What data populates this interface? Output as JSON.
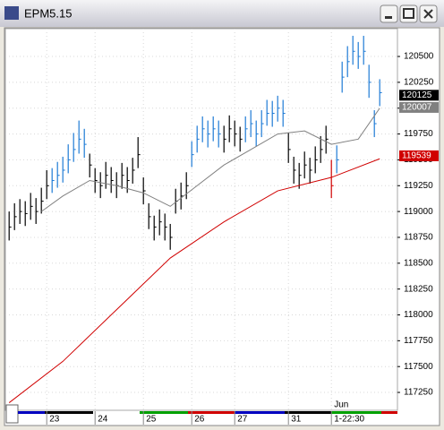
{
  "window": {
    "title": "EPM5.15"
  },
  "chart_data": {
    "type": "ohlc",
    "xlim": [
      -0.7,
      72.3
    ],
    "ylim": [
      117077,
      120769
    ],
    "yticks": [
      117250,
      117500,
      117750,
      118000,
      118250,
      118500,
      118750,
      119000,
      119250,
      119500,
      119750,
      120000,
      120250,
      120500
    ],
    "xticks": [
      {
        "value": 7,
        "label": "23"
      },
      {
        "value": 16,
        "label": "24"
      },
      {
        "value": 25,
        "label": "25"
      },
      {
        "value": 34,
        "label": "26"
      },
      {
        "value": 42,
        "label": "27"
      },
      {
        "value": 52,
        "label": "31"
      },
      {
        "value": 60,
        "label": "1-22:30"
      }
    ],
    "month_label": "Jun",
    "grid": true,
    "high": [
      119000,
      119080,
      119120,
      119100,
      119180,
      119130,
      119230,
      119400,
      119420,
      119480,
      119530,
      119650,
      119760,
      119880,
      119800,
      119560,
      119420,
      119380,
      119480,
      119430,
      119380,
      119470,
      119430,
      119520,
      119720,
      119330,
      119080,
      118960,
      119020,
      118980,
      118880,
      119220,
      119280,
      119380,
      119680,
      119830,
      119920,
      119880,
      119920,
      119880,
      119830,
      119930,
      119880,
      119820,
      119920,
      119980,
      119880,
      119980,
      120080,
      120070,
      120120,
      120080,
      119760,
      119530,
      119470,
      119580,
      119520,
      119630,
      119730,
      119830,
      119500,
      119640,
      120450,
      120600,
      120700,
      120640,
      120700,
      120420,
      119980,
      120280
    ],
    "low": [
      118720,
      118820,
      118880,
      118860,
      118920,
      118880,
      118980,
      119120,
      119180,
      119230,
      119280,
      119370,
      119480,
      119560,
      119520,
      119330,
      119180,
      119130,
      119220,
      119180,
      119130,
      119220,
      119180,
      119270,
      119420,
      119070,
      118830,
      118720,
      118770,
      118720,
      118630,
      118980,
      119020,
      119120,
      119430,
      119570,
      119670,
      119620,
      119680,
      119620,
      119570,
      119670,
      119630,
      119580,
      119670,
      119720,
      119630,
      119720,
      119830,
      119820,
      119870,
      119820,
      119470,
      119270,
      119220,
      119320,
      119270,
      119370,
      119470,
      119560,
      119130,
      119370,
      120150,
      120300,
      120420,
      120380,
      120420,
      120100,
      119720,
      120020
    ],
    "close": [
      118850,
      118950,
      119000,
      118980,
      119050,
      119000,
      119100,
      119250,
      119300,
      119350,
      119400,
      119500,
      119600,
      119700,
      119650,
      119450,
      119300,
      119250,
      119350,
      119300,
      119250,
      119350,
      119300,
      119400,
      119550,
      119200,
      118950,
      118850,
      118900,
      118850,
      118750,
      119100,
      119150,
      119250,
      119550,
      119700,
      119800,
      119750,
      119800,
      119750,
      119700,
      119800,
      119750,
      119700,
      119800,
      119850,
      119750,
      119850,
      119950,
      119950,
      120000,
      119950,
      119600,
      119400,
      119350,
      119450,
      119400,
      119500,
      119600,
      119700,
      119250,
      119500,
      120300,
      120450,
      120550,
      120500,
      120550,
      120250,
      119850,
      120150
    ],
    "colors": [
      "#000000",
      "#000000",
      "#000000",
      "#000000",
      "#000000",
      "#000000",
      "#000000",
      "#000000",
      "#1e7bd6",
      "#1e7bd6",
      "#1e7bd6",
      "#1e7bd6",
      "#1e7bd6",
      "#1e7bd6",
      "#1e7bd6",
      "#000000",
      "#000000",
      "#000000",
      "#000000",
      "#000000",
      "#000000",
      "#000000",
      "#000000",
      "#000000",
      "#000000",
      "#000000",
      "#000000",
      "#000000",
      "#000000",
      "#000000",
      "#000000",
      "#000000",
      "#000000",
      "#000000",
      "#1e7bd6",
      "#1e7bd6",
      "#1e7bd6",
      "#1e7bd6",
      "#1e7bd6",
      "#1e7bd6",
      "#000000",
      "#000000",
      "#000000",
      "#000000",
      "#1e7bd6",
      "#1e7bd6",
      "#1e7bd6",
      "#1e7bd6",
      "#1e7bd6",
      "#1e7bd6",
      "#1e7bd6",
      "#1e7bd6",
      "#000000",
      "#000000",
      "#000000",
      "#000000",
      "#000000",
      "#000000",
      "#000000",
      "#000000",
      "#d00000",
      "#1e7bd6",
      "#1e7bd6",
      "#1e7bd6",
      "#1e7bd6",
      "#1e7bd6",
      "#1e7bd6",
      "#1e7bd6",
      "#1e7bd6",
      "#1e7bd6"
    ],
    "lines": [
      {
        "color": "#808080",
        "x": [
          6,
          10,
          15,
          20,
          25,
          30,
          35,
          40,
          45,
          50,
          55,
          60,
          65,
          69
        ],
        "values": [
          119000,
          119150,
          119300,
          119250,
          119180,
          119050,
          119250,
          119450,
          119600,
          119750,
          119780,
          119650,
          119700,
          120000
        ]
      },
      {
        "color": "#d00000",
        "x": [
          0,
          10,
          20,
          30,
          40,
          50,
          60,
          69
        ],
        "values": [
          117150,
          117550,
          118050,
          118550,
          118900,
          119200,
          119330,
          119510
        ]
      }
    ],
    "price_markers": [
      {
        "value": 120125,
        "color": "#000000"
      },
      {
        "value": 120007,
        "color": "#808080"
      },
      {
        "value": 119539,
        "color": "#d00000"
      }
    ]
  }
}
